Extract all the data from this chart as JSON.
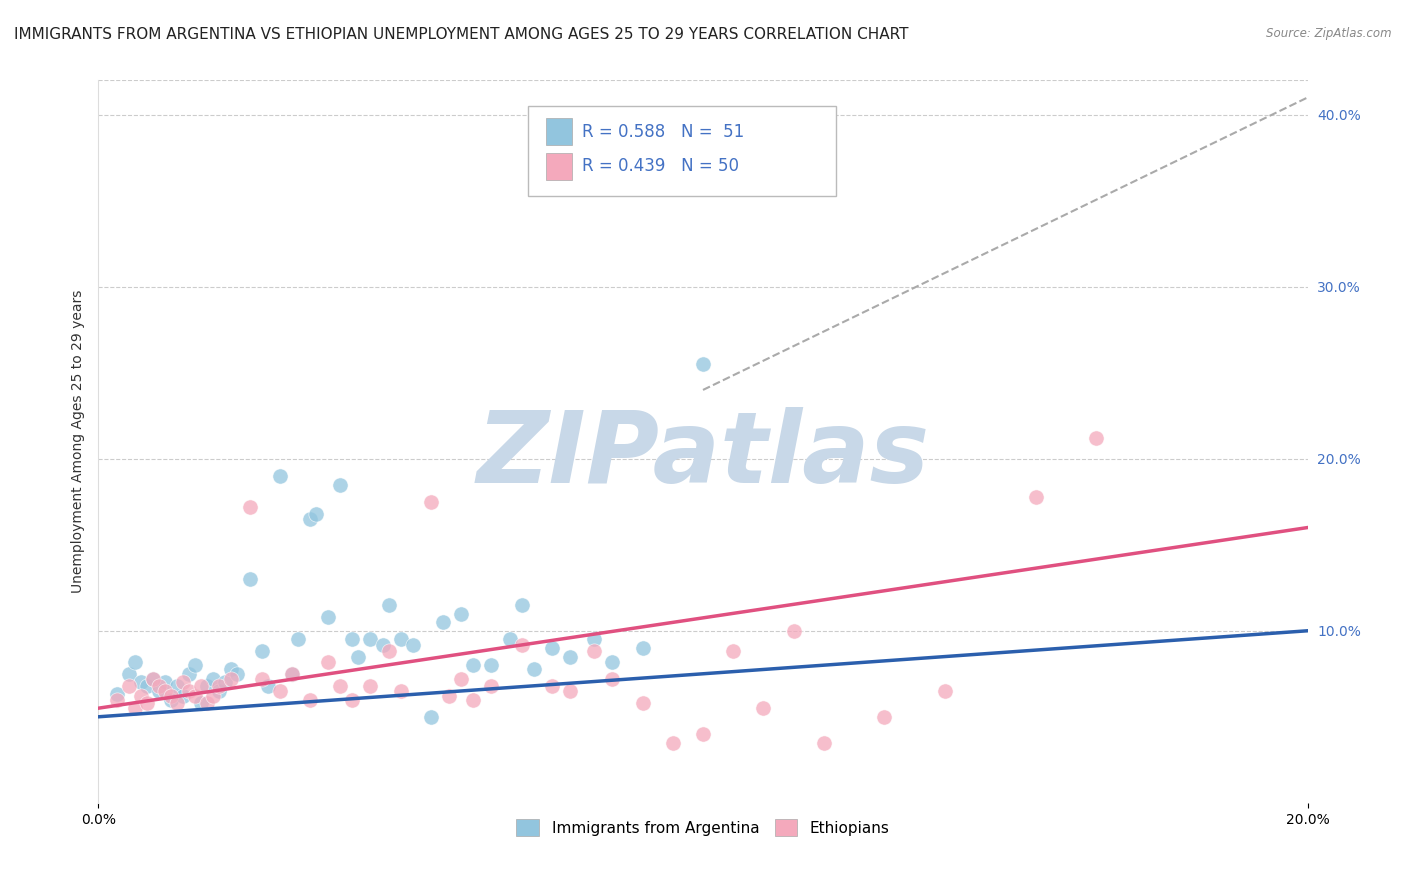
{
  "title": "IMMIGRANTS FROM ARGENTINA VS ETHIOPIAN UNEMPLOYMENT AMONG AGES 25 TO 29 YEARS CORRELATION CHART",
  "source": "Source: ZipAtlas.com",
  "ylabel": "Unemployment Among Ages 25 to 29 years",
  "xlim": [
    0.0,
    0.2
  ],
  "ylim": [
    0.0,
    0.42
  ],
  "x_ticks": [
    0.0,
    0.2
  ],
  "x_tick_labels": [
    "0.0%",
    "20.0%"
  ],
  "y_ticks_right": [
    0.1,
    0.2,
    0.3,
    0.4
  ],
  "y_tick_labels_right": [
    "10.0%",
    "20.0%",
    "30.0%",
    "40.0%"
  ],
  "blue_color": "#92c5de",
  "pink_color": "#f4a9bc",
  "legend_r_blue": "0.588",
  "legend_n_blue": "51",
  "legend_r_pink": "0.439",
  "legend_n_pink": "50",
  "legend_label_blue": "Immigrants from Argentina",
  "legend_label_pink": "Ethiopians",
  "watermark": "ZIPatlas",
  "blue_scatter_x": [
    0.003,
    0.005,
    0.006,
    0.007,
    0.008,
    0.009,
    0.01,
    0.011,
    0.012,
    0.013,
    0.014,
    0.015,
    0.016,
    0.017,
    0.018,
    0.019,
    0.02,
    0.021,
    0.022,
    0.023,
    0.025,
    0.027,
    0.028,
    0.03,
    0.032,
    0.033,
    0.035,
    0.036,
    0.038,
    0.04,
    0.042,
    0.043,
    0.045,
    0.047,
    0.048,
    0.05,
    0.052,
    0.055,
    0.057,
    0.06,
    0.062,
    0.065,
    0.068,
    0.07,
    0.072,
    0.075,
    0.078,
    0.082,
    0.085,
    0.09,
    0.1
  ],
  "blue_scatter_y": [
    0.063,
    0.075,
    0.082,
    0.07,
    0.068,
    0.072,
    0.065,
    0.07,
    0.06,
    0.068,
    0.062,
    0.075,
    0.08,
    0.058,
    0.068,
    0.072,
    0.065,
    0.07,
    0.078,
    0.075,
    0.13,
    0.088,
    0.068,
    0.19,
    0.075,
    0.095,
    0.165,
    0.168,
    0.108,
    0.185,
    0.095,
    0.085,
    0.095,
    0.092,
    0.115,
    0.095,
    0.092,
    0.05,
    0.105,
    0.11,
    0.08,
    0.08,
    0.095,
    0.115,
    0.078,
    0.09,
    0.085,
    0.095,
    0.082,
    0.09,
    0.255
  ],
  "pink_scatter_x": [
    0.003,
    0.005,
    0.006,
    0.007,
    0.008,
    0.009,
    0.01,
    0.011,
    0.012,
    0.013,
    0.014,
    0.015,
    0.016,
    0.017,
    0.018,
    0.019,
    0.02,
    0.022,
    0.025,
    0.027,
    0.03,
    0.032,
    0.035,
    0.038,
    0.04,
    0.042,
    0.045,
    0.048,
    0.05,
    0.055,
    0.058,
    0.06,
    0.062,
    0.065,
    0.07,
    0.075,
    0.078,
    0.082,
    0.085,
    0.09,
    0.095,
    0.1,
    0.105,
    0.11,
    0.115,
    0.12,
    0.13,
    0.14,
    0.155,
    0.165
  ],
  "pink_scatter_y": [
    0.06,
    0.068,
    0.055,
    0.062,
    0.058,
    0.072,
    0.068,
    0.065,
    0.062,
    0.058,
    0.07,
    0.065,
    0.062,
    0.068,
    0.058,
    0.062,
    0.068,
    0.072,
    0.172,
    0.072,
    0.065,
    0.075,
    0.06,
    0.082,
    0.068,
    0.06,
    0.068,
    0.088,
    0.065,
    0.175,
    0.062,
    0.072,
    0.06,
    0.068,
    0.092,
    0.068,
    0.065,
    0.088,
    0.072,
    0.058,
    0.035,
    0.04,
    0.088,
    0.055,
    0.1,
    0.035,
    0.05,
    0.065,
    0.178,
    0.212
  ],
  "blue_line_x": [
    0.0,
    0.2
  ],
  "blue_line_y": [
    0.05,
    0.1
  ],
  "pink_line_x": [
    0.0,
    0.2
  ],
  "pink_line_y": [
    0.055,
    0.16
  ],
  "dashed_line_x": [
    0.1,
    0.2
  ],
  "dashed_line_y": [
    0.24,
    0.41
  ],
  "grid_color": "#cccccc",
  "background_color": "#ffffff",
  "title_fontsize": 11,
  "axis_label_fontsize": 10,
  "tick_label_fontsize": 10,
  "watermark_color": "#c8d8e8",
  "accent_color": "#4472c4"
}
